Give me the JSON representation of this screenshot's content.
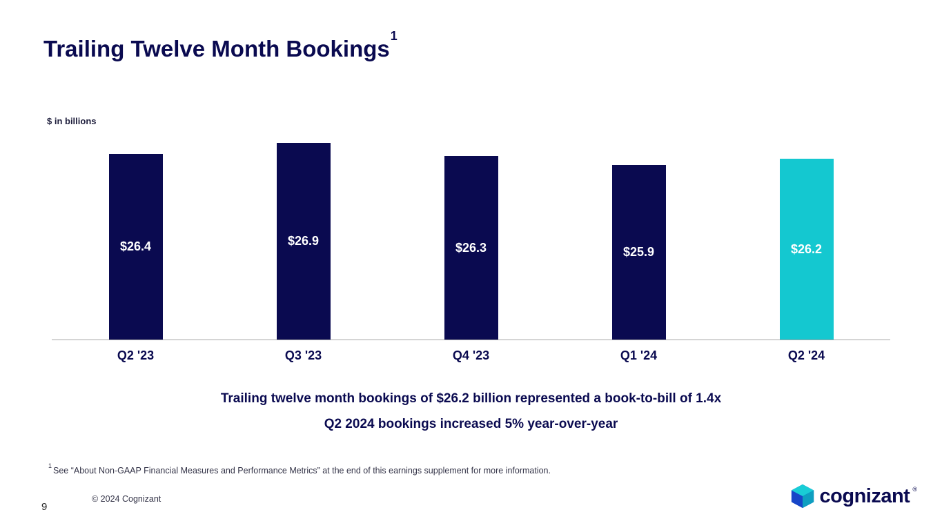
{
  "slide": {
    "title": "Trailing Twelve Month Bookings",
    "title_superscript": "1",
    "units_label": "$ in billions",
    "summary_line1": "Trailing twelve month bookings of $26.2 billion represented a book-to-bill of 1.4x",
    "summary_line2": "Q2 2024 bookings increased 5% year-over-year",
    "footnote_superscript": "1",
    "footnote": "See “About Non-GAAP Financial Measures and Performance Metrics” at the end of this earnings supplement for more information.",
    "copyright": "© 2024 Cognizant",
    "page_number": "9",
    "logo_text": "cognizant",
    "logo_registered": "®"
  },
  "colors": {
    "navy": "#0a0a50",
    "teal": "#14c8d0",
    "axis_gray": "#a3a3a3",
    "bar_label_white": "#ffffff"
  },
  "chart_data": {
    "type": "bar",
    "title": "Trailing Twelve Month Bookings",
    "xlabel": "",
    "ylabel": "$ in billions",
    "categories": [
      "Q2 '23",
      "Q3 '23",
      "Q4 '23",
      "Q1 '24",
      "Q2 '24"
    ],
    "values": [
      26.4,
      26.9,
      26.3,
      25.9,
      26.2
    ],
    "value_labels": [
      "$26.4",
      "$26.9",
      "$26.3",
      "$25.9",
      "$26.2"
    ],
    "bar_colors": [
      "#0a0a50",
      "#0a0a50",
      "#0a0a50",
      "#0a0a50",
      "#14c8d0"
    ],
    "ylim": [
      18,
      27
    ],
    "grid": false,
    "legend": "none",
    "value_label_position": "center-inside"
  }
}
